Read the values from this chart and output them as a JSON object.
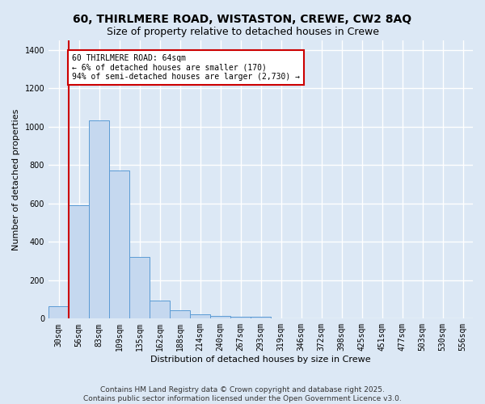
{
  "title_line1": "60, THIRLMERE ROAD, WISTASTON, CREWE, CW2 8AQ",
  "title_line2": "Size of property relative to detached houses in Crewe",
  "xlabel": "Distribution of detached houses by size in Crewe",
  "ylabel": "Number of detached properties",
  "bar_labels": [
    "30sqm",
    "56sqm",
    "83sqm",
    "109sqm",
    "135sqm",
    "162sqm",
    "188sqm",
    "214sqm",
    "240sqm",
    "267sqm",
    "293sqm",
    "319sqm",
    "346sqm",
    "372sqm",
    "398sqm",
    "425sqm",
    "451sqm",
    "477sqm",
    "503sqm",
    "530sqm",
    "556sqm"
  ],
  "bar_values": [
    65,
    590,
    1035,
    770,
    320,
    95,
    45,
    22,
    15,
    8,
    10,
    0,
    0,
    0,
    0,
    0,
    0,
    0,
    0,
    0,
    0
  ],
  "bar_color": "#c5d8ef",
  "bar_edge_color": "#5b9bd5",
  "vline_x": 1.0,
  "vline_color": "#cc0000",
  "annotation_text": "60 THIRLMERE ROAD: 64sqm\n← 6% of detached houses are smaller (170)\n94% of semi-detached houses are larger (2,730) →",
  "annotation_box_color": "#ffffff",
  "annotation_border_color": "#cc0000",
  "ylim": [
    0,
    1450
  ],
  "background_color": "#dce8f5",
  "grid_color": "#ffffff",
  "footer_text": "Contains HM Land Registry data © Crown copyright and database right 2025.\nContains public sector information licensed under the Open Government Licence v3.0.",
  "title_fontsize": 10,
  "subtitle_fontsize": 9,
  "axis_label_fontsize": 8,
  "tick_fontsize": 7,
  "annotation_fontsize": 7,
  "footer_fontsize": 6.5
}
